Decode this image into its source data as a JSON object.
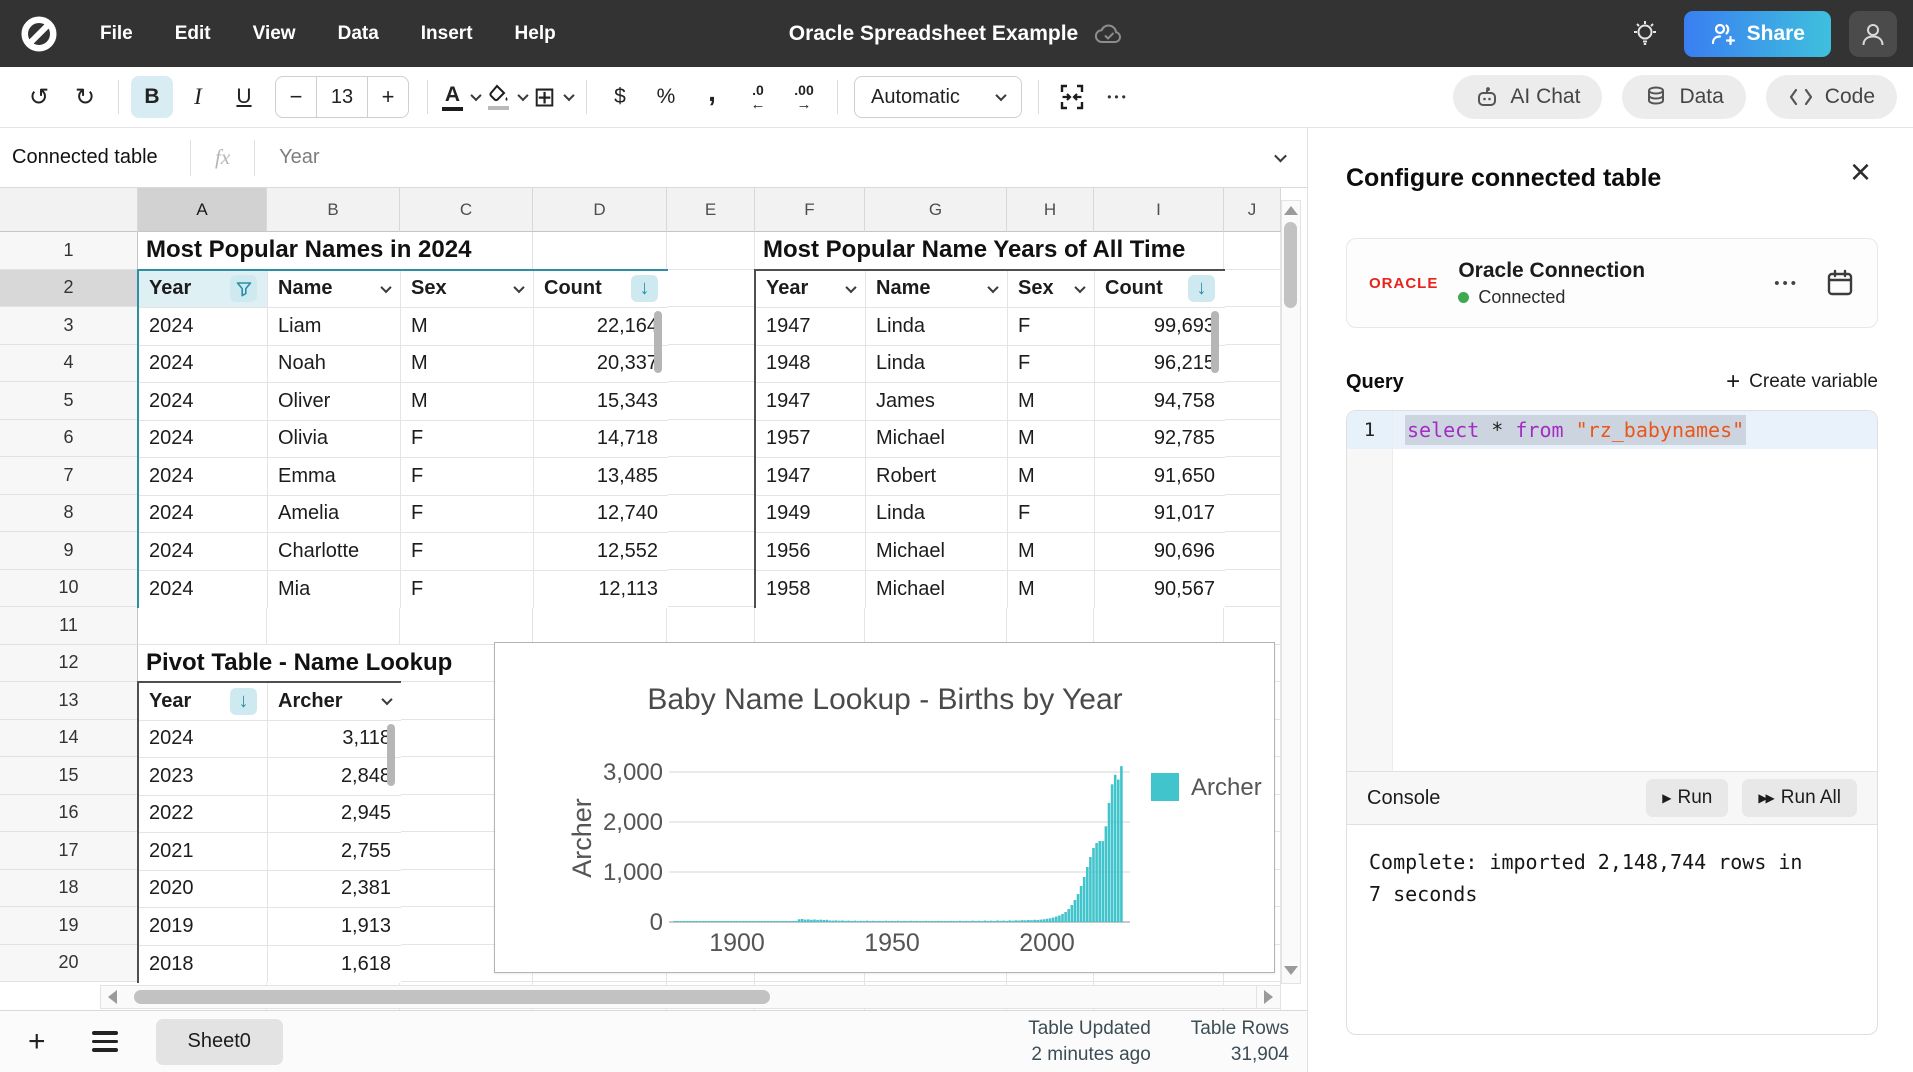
{
  "menubar": {
    "menus": [
      "File",
      "Edit",
      "View",
      "Data",
      "Insert",
      "Help"
    ],
    "title": "Oracle Spreadsheet Example",
    "share_label": "Share"
  },
  "toolbar": {
    "font_size": "13",
    "format_select": "Automatic",
    "more": "•••",
    "buttons": {
      "ai_chat": "AI Chat",
      "data": "Data",
      "code": "Code"
    }
  },
  "formula_bar": {
    "name_box": "Connected table",
    "fx": "fx",
    "value": "Year"
  },
  "grid": {
    "col_headers": [
      "A",
      "B",
      "C",
      "D",
      "E",
      "F",
      "G",
      "H",
      "I",
      "J"
    ],
    "row_count": 20,
    "selection": {
      "col": "A",
      "row": 2
    }
  },
  "tables": [
    {
      "id": "names-2024",
      "title": "Most Popular Names in 2024",
      "col": "A",
      "row": 2,
      "border": "teal",
      "headers": [
        {
          "label": "Year",
          "icon": "filter"
        },
        {
          "label": "Name",
          "icon": "chevron"
        },
        {
          "label": "Sex",
          "icon": "chevron"
        },
        {
          "label": "Count",
          "icon": "sort-down"
        }
      ],
      "align": [
        "left",
        "left",
        "left",
        "right"
      ],
      "rows": [
        [
          "2024",
          "Liam",
          "M",
          "22,164"
        ],
        [
          "2024",
          "Noah",
          "M",
          "20,337"
        ],
        [
          "2024",
          "Oliver",
          "M",
          "15,343"
        ],
        [
          "2024",
          "Olivia",
          "F",
          "14,718"
        ],
        [
          "2024",
          "Emma",
          "F",
          "13,485"
        ],
        [
          "2024",
          "Amelia",
          "F",
          "12,740"
        ],
        [
          "2024",
          "Charlotte",
          "F",
          "12,552"
        ],
        [
          "2024",
          "Mia",
          "F",
          "12,113"
        ]
      ],
      "scroll_pill": true
    },
    {
      "id": "all-time",
      "title": "Most Popular Name Years of All Time",
      "col": "F",
      "row": 2,
      "border": "dark",
      "headers": [
        {
          "label": "Year",
          "icon": "chevron"
        },
        {
          "label": "Name",
          "icon": "chevron"
        },
        {
          "label": "Sex",
          "icon": "chevron"
        },
        {
          "label": "Count",
          "icon": "sort-down"
        }
      ],
      "align": [
        "left",
        "left",
        "left",
        "right"
      ],
      "rows": [
        [
          "1947",
          "Linda",
          "F",
          "99,693"
        ],
        [
          "1948",
          "Linda",
          "F",
          "96,215"
        ],
        [
          "1947",
          "James",
          "M",
          "94,758"
        ],
        [
          "1957",
          "Michael",
          "M",
          "92,785"
        ],
        [
          "1947",
          "Robert",
          "M",
          "91,650"
        ],
        [
          "1949",
          "Linda",
          "F",
          "91,017"
        ],
        [
          "1956",
          "Michael",
          "M",
          "90,696"
        ],
        [
          "1958",
          "Michael",
          "M",
          "90,567"
        ]
      ],
      "scroll_pill": true
    },
    {
      "id": "pivot-name-lookup",
      "title": "Pivot Table - Name Lookup",
      "col": "A",
      "row": 13,
      "border": "dark",
      "headers": [
        {
          "label": "Year",
          "icon": "sort-down"
        },
        {
          "label": "Archer",
          "icon": "chevron"
        }
      ],
      "align": [
        "left",
        "right"
      ],
      "rows": [
        [
          "2024",
          "3,118"
        ],
        [
          "2023",
          "2,848"
        ],
        [
          "2022",
          "2,945"
        ],
        [
          "2021",
          "2,755"
        ],
        [
          "2020",
          "2,381"
        ],
        [
          "2019",
          "1,913"
        ],
        [
          "2018",
          "1,618"
        ]
      ],
      "scroll_pill": true
    }
  ],
  "chart_data": {
    "type": "bar",
    "title": "Baby Name Lookup - Births by Year",
    "xlabel": "",
    "ylabel": "Archer",
    "legend": [
      "Archer"
    ],
    "legend_position": "right",
    "bar_color": "#41c4cb",
    "grid": true,
    "x_start_year": 1880,
    "x_ticks": [
      1900,
      1950,
      2000
    ],
    "y_ticks": [
      0,
      1000,
      2000,
      3000
    ],
    "ylim": [
      0,
      3200
    ],
    "values": [
      8,
      5,
      6,
      9,
      7,
      10,
      8,
      6,
      11,
      9,
      7,
      12,
      10,
      8,
      9,
      13,
      11,
      9,
      10,
      12,
      14,
      11,
      13,
      10,
      15,
      12,
      14,
      11,
      16,
      13,
      15,
      12,
      17,
      14,
      18,
      15,
      19,
      16,
      20,
      17,
      55,
      60,
      48,
      52,
      45,
      50,
      42,
      46,
      40,
      44,
      30,
      28,
      32,
      26,
      30,
      24,
      28,
      22,
      26,
      20,
      24,
      22,
      26,
      20,
      24,
      18,
      22,
      20,
      24,
      18,
      22,
      20,
      24,
      18,
      22,
      20,
      24,
      18,
      22,
      20,
      18,
      22,
      16,
      20,
      18,
      22,
      16,
      20,
      18,
      22,
      20,
      18,
      24,
      16,
      22,
      18,
      26,
      20,
      24,
      18,
      28,
      22,
      26,
      20,
      30,
      24,
      28,
      22,
      32,
      26,
      35,
      30,
      38,
      34,
      40,
      36,
      44,
      40,
      48,
      55,
      65,
      75,
      90,
      110,
      130,
      160,
      200,
      260,
      340,
      440,
      560,
      720,
      900,
      1100,
      1300,
      1480,
      1580,
      1620,
      1618,
      1913,
      2381,
      2755,
      2945,
      2848,
      3118
    ]
  },
  "panel": {
    "title": "Configure connected table",
    "connection": {
      "logo": "ORACLE",
      "name": "Oracle Connection",
      "status": "Connected",
      "more": "•••"
    },
    "query_label": "Query",
    "create_variable": "Create variable",
    "editor": {
      "line_number": "1",
      "sql": {
        "kw1": "select",
        "op": "*",
        "kw2": "from",
        "str": "\"rz_babynames\""
      }
    },
    "console": {
      "label": "Console",
      "run": "Run",
      "run_all": "Run All",
      "output": "Complete: imported 2,148,744 rows in 7 seconds"
    }
  },
  "bottom_bar": {
    "sheet_tab": "Sheet0",
    "stats": [
      {
        "label": "Table Updated",
        "value": "2 minutes ago"
      },
      {
        "label": "Table Rows",
        "value": "31,904"
      }
    ]
  },
  "colors": {
    "accent_teal": "#2a8fa6",
    "table_select_border": "#2e8fa3",
    "chart_teal": "#41c4cb",
    "oracle_red": "#e8231c",
    "status_green": "#3fa94f",
    "keyword_purple": "#a32cc4",
    "string_orange": "#e8571c",
    "share_gradient": [
      "#3a7ef2",
      "#3ec0dd"
    ]
  }
}
